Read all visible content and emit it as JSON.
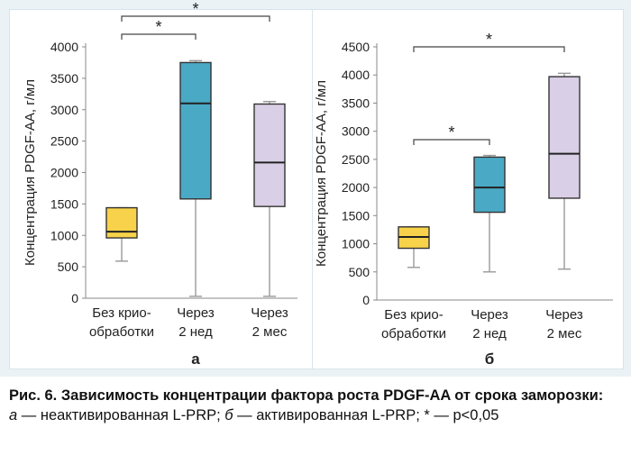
{
  "caption": {
    "title": "Рис. 6. Зависимость концентрации фактора роста PDGF-AA от срока заморозки:",
    "note_a_letter": "а",
    "note_a_text": " — неактивированная L-PRP; ",
    "note_b_letter": "б",
    "note_b_text": " — активированная L-PRP; * — p<0,05"
  },
  "colors": {
    "group1": "#f7d24a",
    "group2": "#4aaac6",
    "group3": "#d9cfe6",
    "axis": "#888888",
    "whisker": "#999999"
  },
  "chart_data": [
    {
      "type": "boxplot",
      "panel_label": "а",
      "ylabel": "Концентрация PDGF-AA, г/мл",
      "ylim": [
        0,
        4000
      ],
      "yticks": [
        0,
        500,
        1000,
        1500,
        2000,
        2500,
        3000,
        3500,
        4000
      ],
      "categories": [
        {
          "line1": "Без крио-",
          "line2": "обработки"
        },
        {
          "line1": "Через",
          "line2": "2 нед"
        },
        {
          "line1": "Через",
          "line2": "2 мес"
        }
      ],
      "boxes": [
        {
          "min": 590,
          "q1": 960,
          "median": 1060,
          "q3": 1440,
          "max": 1440
        },
        {
          "min": 30,
          "q1": 1580,
          "median": 3100,
          "q3": 3750,
          "max": 3780
        },
        {
          "min": 30,
          "q1": 1460,
          "median": 2160,
          "q3": 3090,
          "max": 3130
        }
      ],
      "significance": [
        {
          "from": 0,
          "to": 1,
          "label": "*"
        },
        {
          "from": 0,
          "to": 2,
          "label": "*"
        }
      ]
    },
    {
      "type": "boxplot",
      "panel_label": "б",
      "ylabel": "Концентрация PDGF-AA, г/мл",
      "ylim": [
        0,
        4500
      ],
      "yticks": [
        0,
        500,
        1000,
        1500,
        2000,
        2500,
        3000,
        3500,
        4000,
        4500
      ],
      "categories": [
        {
          "line1": "Без крио-",
          "line2": "обработки"
        },
        {
          "line1": "Через",
          "line2": "2 нед"
        },
        {
          "line1": "Через",
          "line2": "2 мес"
        }
      ],
      "boxes": [
        {
          "min": 580,
          "q1": 920,
          "median": 1120,
          "q3": 1300,
          "max": 1300
        },
        {
          "min": 500,
          "q1": 1560,
          "median": 2000,
          "q3": 2540,
          "max": 2570
        },
        {
          "min": 550,
          "q1": 1810,
          "median": 2600,
          "q3": 3970,
          "max": 4030
        }
      ],
      "significance": [
        {
          "from": 0,
          "to": 1,
          "label": "*"
        },
        {
          "from": 0,
          "to": 2,
          "label": "*"
        }
      ]
    }
  ]
}
